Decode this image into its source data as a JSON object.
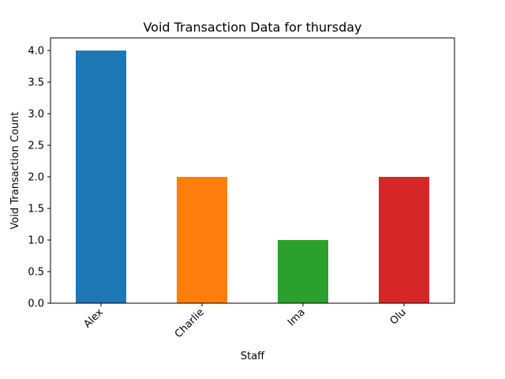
{
  "chart_data": {
    "type": "bar",
    "title": "Void Transaction Data for thursday",
    "xlabel": "Staff",
    "ylabel": "Void Transaction Count",
    "categories": [
      "Alex",
      "Charlie",
      "Ima",
      "Olu"
    ],
    "values": [
      4,
      2,
      1,
      2
    ],
    "colors": [
      "#1f77b4",
      "#ff7f0e",
      "#2ca02c",
      "#d62728"
    ],
    "ylim": [
      0,
      4.2
    ],
    "yticks": [
      "0.0",
      "0.5",
      "1.0",
      "1.5",
      "2.0",
      "2.5",
      "3.0",
      "3.5",
      "4.0"
    ],
    "grid": false,
    "legend": "none"
  }
}
